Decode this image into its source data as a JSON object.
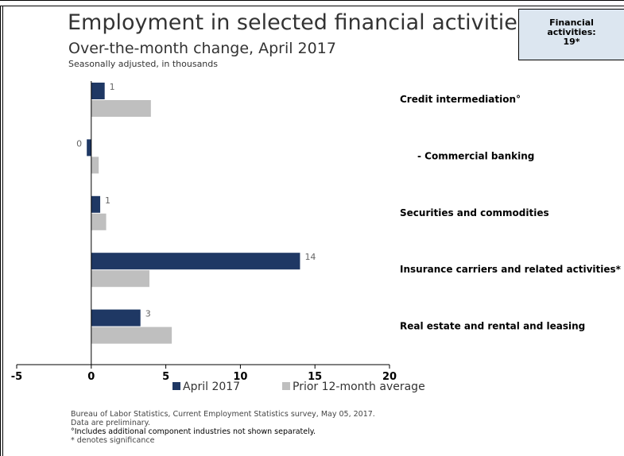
{
  "header": {
    "title": "Employment in selected financial activities",
    "subtitle": "Over-the-month change, April 2017",
    "units": "Seasonally adjusted, in thousands"
  },
  "callout": {
    "line1": "Financial",
    "line2": "activities:",
    "line3": "19*"
  },
  "chart_data": {
    "type": "bar",
    "orientation": "horizontal",
    "categories": [
      "Credit intermediation°",
      "- Commercial banking",
      "Securities and commodities",
      "Insurance carriers and related activities*",
      "Real estate and rental and leasing"
    ],
    "series": [
      {
        "name": "April 2017",
        "values": [
          0.9,
          -0.3,
          0.6,
          14.0,
          3.3
        ],
        "labels": [
          "1",
          "0",
          "1",
          "14",
          "3"
        ],
        "color": "#1f3864"
      },
      {
        "name": "Prior 12-month average",
        "values": [
          4.0,
          0.5,
          1.0,
          3.9,
          5.4
        ],
        "color": "#bfbfbf"
      }
    ],
    "xlim": [
      -5,
      20
    ],
    "xticks": [
      "-5",
      "0",
      "5",
      "10",
      "15",
      "20"
    ],
    "legend_position": "bottom",
    "grid": false
  },
  "footnotes": {
    "source": "Bureau of Labor Statistics, Current Employment Statistics survey, May 05, 2017.",
    "preliminary": "Data are preliminary.",
    "component": "°Includes additional component industries not shown separately.",
    "significance": "* denotes significance"
  }
}
